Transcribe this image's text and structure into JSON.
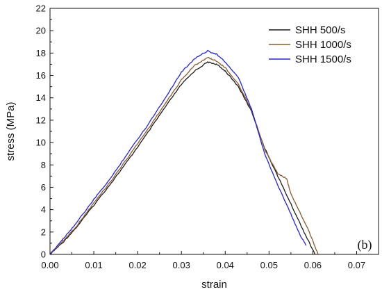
{
  "chart_data": {
    "type": "line",
    "panel_label": "(b)",
    "xlabel": "strain",
    "ylabel": "stress (MPa)",
    "xlim": [
      0.0,
      0.075
    ],
    "ylim": [
      0,
      22
    ],
    "x_ticks": [
      "0.00",
      "0.01",
      "0.02",
      "0.03",
      "0.04",
      "0.05",
      "0.06",
      "0.07"
    ],
    "y_ticks": [
      "0",
      "2",
      "4",
      "6",
      "8",
      "10",
      "12",
      "14",
      "16",
      "18",
      "20",
      "22"
    ],
    "legend_position": "top-right",
    "series": [
      {
        "name": "SHH 500/s",
        "color": "#1a1a1a",
        "x": [
          0.0,
          0.003,
          0.006,
          0.01,
          0.014,
          0.018,
          0.022,
          0.026,
          0.03,
          0.033,
          0.036,
          0.038,
          0.04,
          0.043,
          0.046,
          0.049,
          0.052,
          0.055,
          0.058,
          0.0605
        ],
        "y": [
          0.0,
          1.1,
          2.4,
          4.4,
          6.4,
          8.5,
          10.7,
          13.0,
          15.2,
          16.4,
          17.2,
          17.0,
          16.4,
          15.0,
          12.8,
          9.5,
          7.0,
          4.5,
          2.0,
          0.0
        ]
      },
      {
        "name": "SHH 1000/s",
        "color": "#8b5a2b",
        "x": [
          0.0,
          0.003,
          0.006,
          0.01,
          0.014,
          0.018,
          0.022,
          0.026,
          0.03,
          0.033,
          0.036,
          0.038,
          0.04,
          0.043,
          0.046,
          0.049,
          0.052,
          0.054,
          0.055,
          0.057,
          0.059,
          0.0612
        ],
        "y": [
          0.0,
          1.2,
          2.5,
          4.6,
          6.6,
          8.8,
          11.0,
          13.3,
          15.6,
          16.9,
          17.6,
          17.3,
          16.7,
          15.2,
          12.9,
          9.4,
          7.2,
          6.8,
          5.4,
          3.8,
          2.2,
          0.0
        ]
      },
      {
        "name": "SHH 1500/s",
        "color": "#2323d9",
        "x": [
          0.0,
          0.003,
          0.006,
          0.01,
          0.014,
          0.018,
          0.022,
          0.026,
          0.03,
          0.033,
          0.036,
          0.038,
          0.04,
          0.043,
          0.046,
          0.049,
          0.052,
          0.055,
          0.057,
          0.0585
        ],
        "y": [
          0.0,
          1.4,
          2.8,
          4.9,
          6.9,
          9.2,
          11.4,
          13.8,
          16.3,
          17.5,
          18.2,
          17.9,
          17.2,
          15.8,
          13.0,
          9.0,
          6.2,
          3.6,
          1.8,
          0.8
        ]
      }
    ]
  }
}
